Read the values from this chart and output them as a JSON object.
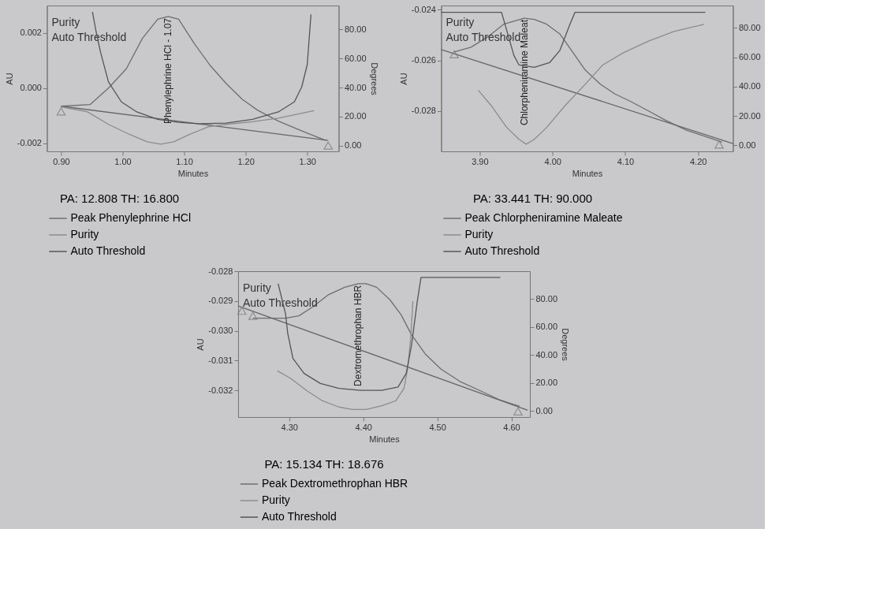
{
  "chart_data": [
    {
      "type": "line",
      "xlabel": "Minutes",
      "ylabel": "AU",
      "y2label": "Degrees",
      "legend": "bottom",
      "legend_title": "PA: 12.808  TH: 16.800",
      "xlim": [
        0.877,
        1.351
      ],
      "xticks": [
        {
          "value": 0.9,
          "label": "0.90"
        },
        {
          "value": 1.0,
          "label": "1.00"
        },
        {
          "value": 1.1,
          "label": "1.10"
        },
        {
          "value": 1.2,
          "label": "1.20"
        },
        {
          "value": 1.3,
          "label": "1.30"
        }
      ],
      "ylim": [
        -0.0023,
        0.003
      ],
      "yticks": [
        {
          "value": -0.002,
          "label": "-0.002"
        },
        {
          "value": 0,
          "label": "0.000"
        },
        {
          "value": 0.002,
          "label": "0.002"
        }
      ],
      "y2lim": [
        -4,
        96.5
      ],
      "y2ticks": [
        {
          "value": 0,
          "label": "0.00"
        },
        {
          "value": 20,
          "label": "20.00"
        },
        {
          "value": 40,
          "label": "40.00"
        },
        {
          "value": 60,
          "label": "60.00"
        },
        {
          "value": 80,
          "label": "80.00"
        }
      ],
      "annotations": [
        "Purity",
        "Auto Threshold",
        {
          "text": "Phenylephrine HCl - 1.07",
          "x": 1.074,
          "y": 0.0026
        }
      ],
      "series": [
        {
          "name": "Peak Phenylephrine HCl",
          "color": "#6e6e6e",
          "x": [
            0.9,
            0.947,
            0.977,
            1.006,
            1.032,
            1.057,
            1.074,
            1.091,
            1.117,
            1.143,
            1.168,
            1.194,
            1.219,
            1.253,
            1.296,
            1.33
          ],
          "values": [
            -0.00066,
            -0.0006,
            0.0,
            0.0007,
            0.0018,
            0.0025,
            0.0026,
            0.0025,
            0.0016,
            0.0008,
            0.00017,
            -0.0004,
            -0.0008,
            -0.0012,
            -0.0016,
            -0.0019
          ]
        },
        {
          "name": "Purity",
          "color": "#8c8c8c",
          "axis": "y2",
          "x": [
            0.9,
            0.943,
            0.977,
            1.011,
            1.04,
            1.062,
            1.083,
            1.109,
            1.139,
            1.168,
            1.211,
            1.253,
            1.311
          ],
          "values": [
            26.7,
            23.2,
            14.6,
            7.7,
            2.6,
            0.9,
            2.6,
            7.7,
            12.9,
            14.6,
            16.4,
            18.9,
            24.1
          ]
        },
        {
          "name": "Auto Threshold",
          "color": "#555555",
          "axis": "y2",
          "x": [
            0.951,
            0.957,
            0.964,
            0.977,
            0.998,
            1.023,
            1.057,
            1.091,
            1.126,
            1.168,
            1.211,
            1.253,
            1.279,
            1.291,
            1.3,
            1.306
          ],
          "values": [
            92.1,
            78.3,
            64.5,
            43.9,
            30.1,
            23.2,
            18.1,
            16.0,
            15.0,
            15.5,
            18.1,
            23.2,
            30.1,
            40.4,
            55.9,
            90.4
          ]
        },
        {
          "color": "#666666",
          "x": [
            0.9,
            1.334
          ],
          "values": [
            -0.00066,
            -0.0019
          ]
        },
        {
          "type": "scatter",
          "marker": "triangle",
          "color": "#777777",
          "x": [
            0.9,
            1.334
          ],
          "values": [
            -0.00085,
            -0.00209
          ]
        }
      ]
    },
    {
      "type": "line",
      "xlabel": "Minutes",
      "ylabel": "AU",
      "legend": "bottom",
      "legend_title": "PA: 33.441  TH: 90.000",
      "xlim": [
        3.847,
        4.248
      ],
      "xticks": [
        {
          "value": 3.9,
          "label": "3.90"
        },
        {
          "value": 4.0,
          "label": "4.00"
        },
        {
          "value": 4.1,
          "label": "4.10"
        },
        {
          "value": 4.2,
          "label": "4.20"
        }
      ],
      "ylim": [
        -0.0296,
        -0.02383
      ],
      "yticks": [
        -0.028,
        -0.026,
        -0.024
      ],
      "y2lim": [
        -4.1,
        95.2
      ],
      "y2ticks": [
        {
          "value": 0,
          "label": "0.00"
        },
        {
          "value": 20,
          "label": "20.00"
        },
        {
          "value": 40,
          "label": "40.00"
        },
        {
          "value": 60,
          "label": "60.00"
        },
        {
          "value": 80,
          "label": "80.00"
        }
      ],
      "annotations": [
        "Purity",
        "Auto Threshold",
        {
          "text": "Chlorpheniramine Maleat",
          "x": 3.961,
          "y": -0.02433
        }
      ],
      "series": [
        {
          "name": "Peak Chlorpheniramine Maleate",
          "color": "#6e6e6e",
          "x": [
            3.865,
            3.888,
            3.912,
            3.933,
            3.961,
            3.975,
            3.992,
            4.01,
            4.024,
            4.045,
            4.066,
            4.086,
            4.107,
            4.132,
            4.156,
            4.184,
            4.219,
            4.233
          ],
          "values": [
            -0.02567,
            -0.02548,
            -0.02505,
            -0.02457,
            -0.02433,
            -0.02438,
            -0.02457,
            -0.02495,
            -0.02552,
            -0.02638,
            -0.02695,
            -0.02733,
            -0.02762,
            -0.028,
            -0.02838,
            -0.02876,
            -0.0291,
            -0.02924
          ]
        },
        {
          "name": "Purity",
          "color": "#8c8c8c",
          "axis": "y2",
          "x": [
            3.898,
            3.916,
            3.937,
            3.954,
            3.964,
            3.975,
            3.992,
            4.017,
            4.045,
            4.069,
            4.097,
            4.132,
            4.167,
            4.208
          ],
          "values": [
            37.6,
            26.9,
            12.2,
            4.1,
            0.8,
            4.1,
            12.2,
            26.9,
            41.6,
            54.7,
            62.9,
            71.0,
            77.6,
            82.4
          ]
        },
        {
          "name": "Auto Threshold",
          "color": "#555555",
          "axis": "y2",
          "x": [
            3.847,
            3.93,
            3.947,
            3.954,
            3.975,
            3.996,
            4.01,
            4.024,
            4.031,
            4.21
          ],
          "values": [
            90.6,
            90.6,
            61.2,
            54.7,
            53.1,
            56.3,
            64.5,
            82.4,
            90.6,
            90.6
          ]
        },
        {
          "color": "#666666",
          "x": [
            3.847,
            4.248
          ],
          "values": [
            -0.02557,
            -0.02929
          ]
        },
        {
          "type": "scatter",
          "marker": "triangle",
          "color": "#777777",
          "x": [
            3.865,
            4.229
          ],
          "values": [
            -0.02576,
            -0.02933
          ]
        }
      ]
    },
    {
      "type": "line",
      "xlabel": "Minutes",
      "ylabel": "AU",
      "y2label": "Degrees",
      "legend": "bottom",
      "legend_title": "PA: 15.134  TH: 18.676",
      "xlim": [
        4.231,
        4.625
      ],
      "xticks": [
        {
          "value": 4.3,
          "label": "4.30"
        },
        {
          "value": 4.4,
          "label": "4.40"
        },
        {
          "value": 4.5,
          "label": "4.50"
        },
        {
          "value": 4.6,
          "label": "4.60"
        }
      ],
      "ylim": [
        -0.0329,
        -0.028
      ],
      "yticks": [
        {
          "value": -0.032,
          "label": "-0.032"
        },
        {
          "value": -0.031,
          "label": "-0.031"
        },
        {
          "value": -0.03,
          "label": "-0.030"
        },
        {
          "value": -0.029,
          "label": "-0.029"
        },
        {
          "value": -0.028,
          "label": "-0.028"
        }
      ],
      "y2lim": [
        -4.5,
        100
      ],
      "y2ticks": [
        {
          "value": 0,
          "label": "0.00"
        },
        {
          "value": 20,
          "label": "20.00"
        },
        {
          "value": 40,
          "label": "40.00"
        },
        {
          "value": 60,
          "label": "60.00"
        },
        {
          "value": 80,
          "label": "80.00"
        }
      ],
      "annotations": [
        "Purity",
        "Auto Threshold",
        {
          "text": "Dextromethrophan HBR",
          "x": 4.393,
          "y": -0.02842
        }
      ],
      "series": [
        {
          "name": "Peak Dextromethrophan HBR",
          "color": "#6e6e6e",
          "x": [
            4.251,
            4.269,
            4.295,
            4.313,
            4.331,
            4.353,
            4.375,
            4.393,
            4.404,
            4.418,
            4.436,
            4.451,
            4.465,
            4.484,
            4.505,
            4.531,
            4.56,
            4.585,
            4.611
          ],
          "values": [
            -0.02958,
            -0.02958,
            -0.02958,
            -0.0295,
            -0.02921,
            -0.02879,
            -0.02854,
            -0.02842,
            -0.02842,
            -0.02854,
            -0.02896,
            -0.02946,
            -0.03013,
            -0.03079,
            -0.03129,
            -0.03171,
            -0.03204,
            -0.03233,
            -0.03254
          ]
        },
        {
          "name": "Purity",
          "color": "#8c8c8c",
          "axis": "y2",
          "x": [
            4.284,
            4.302,
            4.324,
            4.345,
            4.367,
            4.385,
            4.404,
            4.425,
            4.444,
            4.455,
            4.46,
            4.464,
            4.467
          ],
          "values": [
            28.6,
            23.2,
            14.3,
            7.1,
            2.7,
            0.9,
            0.9,
            3.6,
            7.1,
            16.1,
            30.4,
            51.8,
            78.6
          ]
        },
        {
          "name": "Auto Threshold",
          "color": "#555555",
          "axis": "y2",
          "x": [
            4.285,
            4.295,
            4.298,
            4.305,
            4.32,
            4.342,
            4.367,
            4.396,
            4.425,
            4.447,
            4.458,
            4.465,
            4.473,
            4.478,
            4.585
          ],
          "values": [
            91.1,
            69.6,
            55.4,
            37.5,
            26.8,
            19.6,
            16.1,
            14.6,
            14.6,
            17.0,
            26.8,
            46.4,
            78.6,
            95.5,
            95.5
          ]
        },
        {
          "color": "#666666",
          "x": [
            4.231,
            4.622
          ],
          "values": [
            -0.02917,
            -0.03267
          ]
        },
        {
          "type": "scatter",
          "marker": "triangle",
          "color": "#777777",
          "x": [
            4.236,
            4.251,
            4.609
          ],
          "values": [
            -0.02933,
            -0.0295,
            -0.03271
          ]
        }
      ]
    }
  ]
}
